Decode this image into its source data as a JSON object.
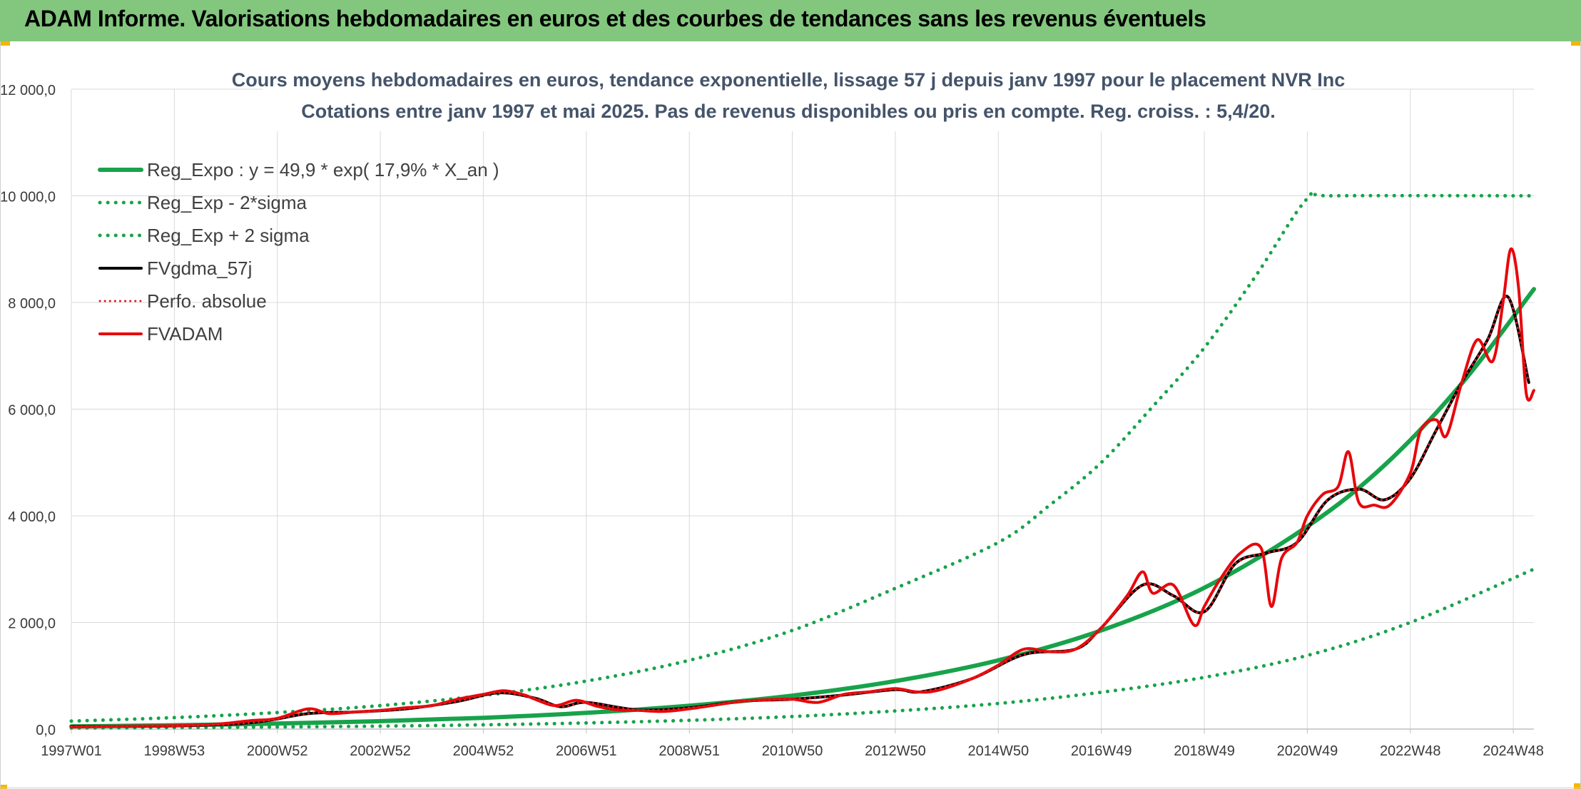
{
  "header": {
    "title": "ADAM Informe. Valorisations hebdomadaires en euros et des courbes de tendances sans les revenus éventuels"
  },
  "chart_data": {
    "type": "line",
    "title": "Cours moyens hebdomadaires en euros, tendance exponentielle, lissage 57 j depuis janv 1997 pour le placement NVR Inc",
    "subtitle": "Cotations entre janv 1997 et mai 2025. Pas de revenus disponibles ou pris en compte. Reg. croiss. : 5,4/20.",
    "xlabel": "",
    "ylabel": "",
    "x_range": [
      1997.0,
      2025.4
    ],
    "ylim": [
      0,
      12000
    ],
    "y_ticks": [
      0,
      2000,
      4000,
      6000,
      8000,
      10000,
      12000
    ],
    "y_tick_labels": [
      "0,0",
      "2 000,0",
      "4 000,0",
      "6 000,0",
      "8 000,0",
      "10 000,0",
      "12 000,0"
    ],
    "x_ticks": [
      1997.0,
      1999.0,
      2001.0,
      2003.0,
      2005.0,
      2007.0,
      2009.0,
      2011.0,
      2013.0,
      2015.0,
      2017.0,
      2019.0,
      2021.0,
      2023.0,
      2025.0
    ],
    "x_tick_labels": [
      "1997W01",
      "1998W53",
      "2000W52",
      "2002W52",
      "2004W52",
      "2006W51",
      "2008W51",
      "2010W50",
      "2012W50",
      "2014W50",
      "2016W49",
      "2018W49",
      "2020W49",
      "2022W48",
      "2024W48"
    ],
    "grid": true,
    "legend_position": "top-left",
    "colors": {
      "trend": "#17a34a",
      "smooth": "#000000",
      "absolute": "#e31a1c",
      "price": "#e8060b",
      "grid": "#d9d9d9",
      "axis_text": "#3a3a3a",
      "title_text": "#44546a"
    },
    "series": [
      {
        "name": "Reg_Expo : y = 49,9 * exp( 17,9% *  X_an )",
        "key": "reg_expo",
        "style": "solid",
        "x": [
          1997.0,
          1999.0,
          2001.0,
          2003.0,
          2005.0,
          2007.0,
          2009.0,
          2011.0,
          2013.0,
          2015.0,
          2017.0,
          2019.0,
          2021.0,
          2022.5,
          2024.0,
          2025.4
        ],
        "y": [
          50,
          72,
          103,
          148,
          212,
          305,
          438,
          628,
          900,
          1290,
          1850,
          2650,
          3800,
          4950,
          6480,
          8250
        ]
      },
      {
        "name": "Reg_Exp - 2*sigma",
        "key": "reg_minus",
        "style": "dotted",
        "x": [
          1997.0,
          1999.0,
          2001.0,
          2003.0,
          2005.0,
          2007.0,
          2009.0,
          2011.0,
          2013.0,
          2015.0,
          2017.0,
          2019.0,
          2021.0,
          2023.0,
          2025.4
        ],
        "y": [
          20,
          28,
          40,
          55,
          80,
          115,
          165,
          235,
          340,
          480,
          690,
          970,
          1380,
          2000,
          3000
        ]
      },
      {
        "name": "Reg_Exp + 2 sigma",
        "key": "reg_plus",
        "style": "dotted",
        "x": [
          1997.0,
          1999.0,
          2001.0,
          2003.0,
          2005.0,
          2007.0,
          2009.0,
          2011.0,
          2013.0,
          2015.0,
          2016.0,
          2017.0,
          2018.0,
          2019.0,
          2020.0,
          2021.0,
          2021.5,
          2025.4
        ],
        "y": [
          150,
          215,
          310,
          440,
          630,
          900,
          1290,
          1850,
          2640,
          3500,
          4200,
          5000,
          6050,
          7150,
          8500,
          9950,
          10000,
          10000
        ]
      },
      {
        "name": "FVgdma_57j",
        "key": "fvgdma",
        "style": "solid",
        "x": [
          1997.0,
          1999.0,
          2000.5,
          2001.6,
          2002.5,
          2003.5,
          2004.5,
          2005.3,
          2006.0,
          2006.5,
          2007.0,
          2008.0,
          2009.0,
          2010.0,
          2011.0,
          2012.0,
          2013.0,
          2013.5,
          2014.5,
          2015.5,
          2016.5,
          2017.0,
          2017.8,
          2018.4,
          2019.0,
          2019.6,
          2020.2,
          2020.8,
          2021.4,
          2022.0,
          2022.5,
          2023.0,
          2023.5,
          2024.0,
          2024.5,
          2024.9,
          2025.3
        ],
        "y": [
          50,
          60,
          120,
          290,
          320,
          380,
          520,
          680,
          580,
          420,
          500,
          360,
          400,
          520,
          560,
          640,
          740,
          700,
          950,
          1400,
          1500,
          1900,
          2700,
          2500,
          2200,
          3100,
          3300,
          3500,
          4300,
          4500,
          4300,
          4700,
          5600,
          6500,
          7300,
          8100,
          6500
        ]
      },
      {
        "name": "Perfo. absolue",
        "key": "perfo",
        "style": "dotted",
        "x": [
          1997.0,
          1999.0,
          2000.5,
          2001.6,
          2002.5,
          2003.5,
          2004.5,
          2005.3,
          2006.0,
          2006.5,
          2007.0,
          2008.0,
          2009.0,
          2010.0,
          2011.0,
          2012.0,
          2013.0,
          2013.5,
          2014.5,
          2015.5,
          2016.5,
          2017.0,
          2017.8,
          2018.4,
          2019.0,
          2019.6,
          2020.2,
          2020.8,
          2021.4,
          2022.0,
          2022.5,
          2023.0,
          2023.5,
          2024.0,
          2024.5,
          2024.9,
          2025.3
        ],
        "y": [
          50,
          60,
          120,
          290,
          320,
          380,
          520,
          680,
          580,
          420,
          500,
          360,
          400,
          520,
          560,
          640,
          740,
          700,
          950,
          1400,
          1500,
          1900,
          2700,
          2500,
          2200,
          3100,
          3300,
          3500,
          4300,
          4500,
          4300,
          4700,
          5600,
          6500,
          7300,
          8100,
          6500
        ]
      },
      {
        "name": "FVADAM",
        "key": "fvadam",
        "style": "solid",
        "x": [
          1997.0,
          1998.0,
          1999.0,
          1999.8,
          2000.5,
          2001.0,
          2001.6,
          2002.0,
          2002.5,
          2003.0,
          2003.5,
          2004.0,
          2004.5,
          2005.0,
          2005.4,
          2005.8,
          2006.0,
          2006.4,
          2006.8,
          2007.2,
          2007.6,
          2008.0,
          2008.5,
          2009.0,
          2009.5,
          2010.0,
          2010.5,
          2011.0,
          2011.5,
          2012.0,
          2012.5,
          2013.0,
          2013.4,
          2013.8,
          2014.5,
          2015.0,
          2015.5,
          2016.0,
          2016.5,
          2017.0,
          2017.5,
          2017.8,
          2018.0,
          2018.4,
          2018.8,
          2019.0,
          2019.3,
          2019.7,
          2020.1,
          2020.3,
          2020.5,
          2020.8,
          2021.0,
          2021.3,
          2021.6,
          2021.8,
          2022.0,
          2022.3,
          2022.6,
          2023.0,
          2023.2,
          2023.5,
          2023.7,
          2024.0,
          2024.3,
          2024.6,
          2024.8,
          2024.95,
          2025.1,
          2025.25,
          2025.4
        ],
        "y": [
          40,
          55,
          65,
          90,
          160,
          200,
          380,
          290,
          320,
          350,
          400,
          440,
          560,
          650,
          720,
          640,
          560,
          440,
          540,
          430,
          360,
          350,
          330,
          380,
          450,
          520,
          550,
          560,
          500,
          650,
          700,
          760,
          700,
          720,
          950,
          1200,
          1500,
          1450,
          1500,
          1900,
          2500,
          2950,
          2550,
          2700,
          1950,
          2300,
          2800,
          3300,
          3400,
          2300,
          3200,
          3500,
          4000,
          4400,
          4550,
          5200,
          4250,
          4200,
          4200,
          4800,
          5600,
          5800,
          5500,
          6500,
          7300,
          6900,
          8000,
          9000,
          8300,
          6300,
          6350
        ]
      }
    ]
  }
}
